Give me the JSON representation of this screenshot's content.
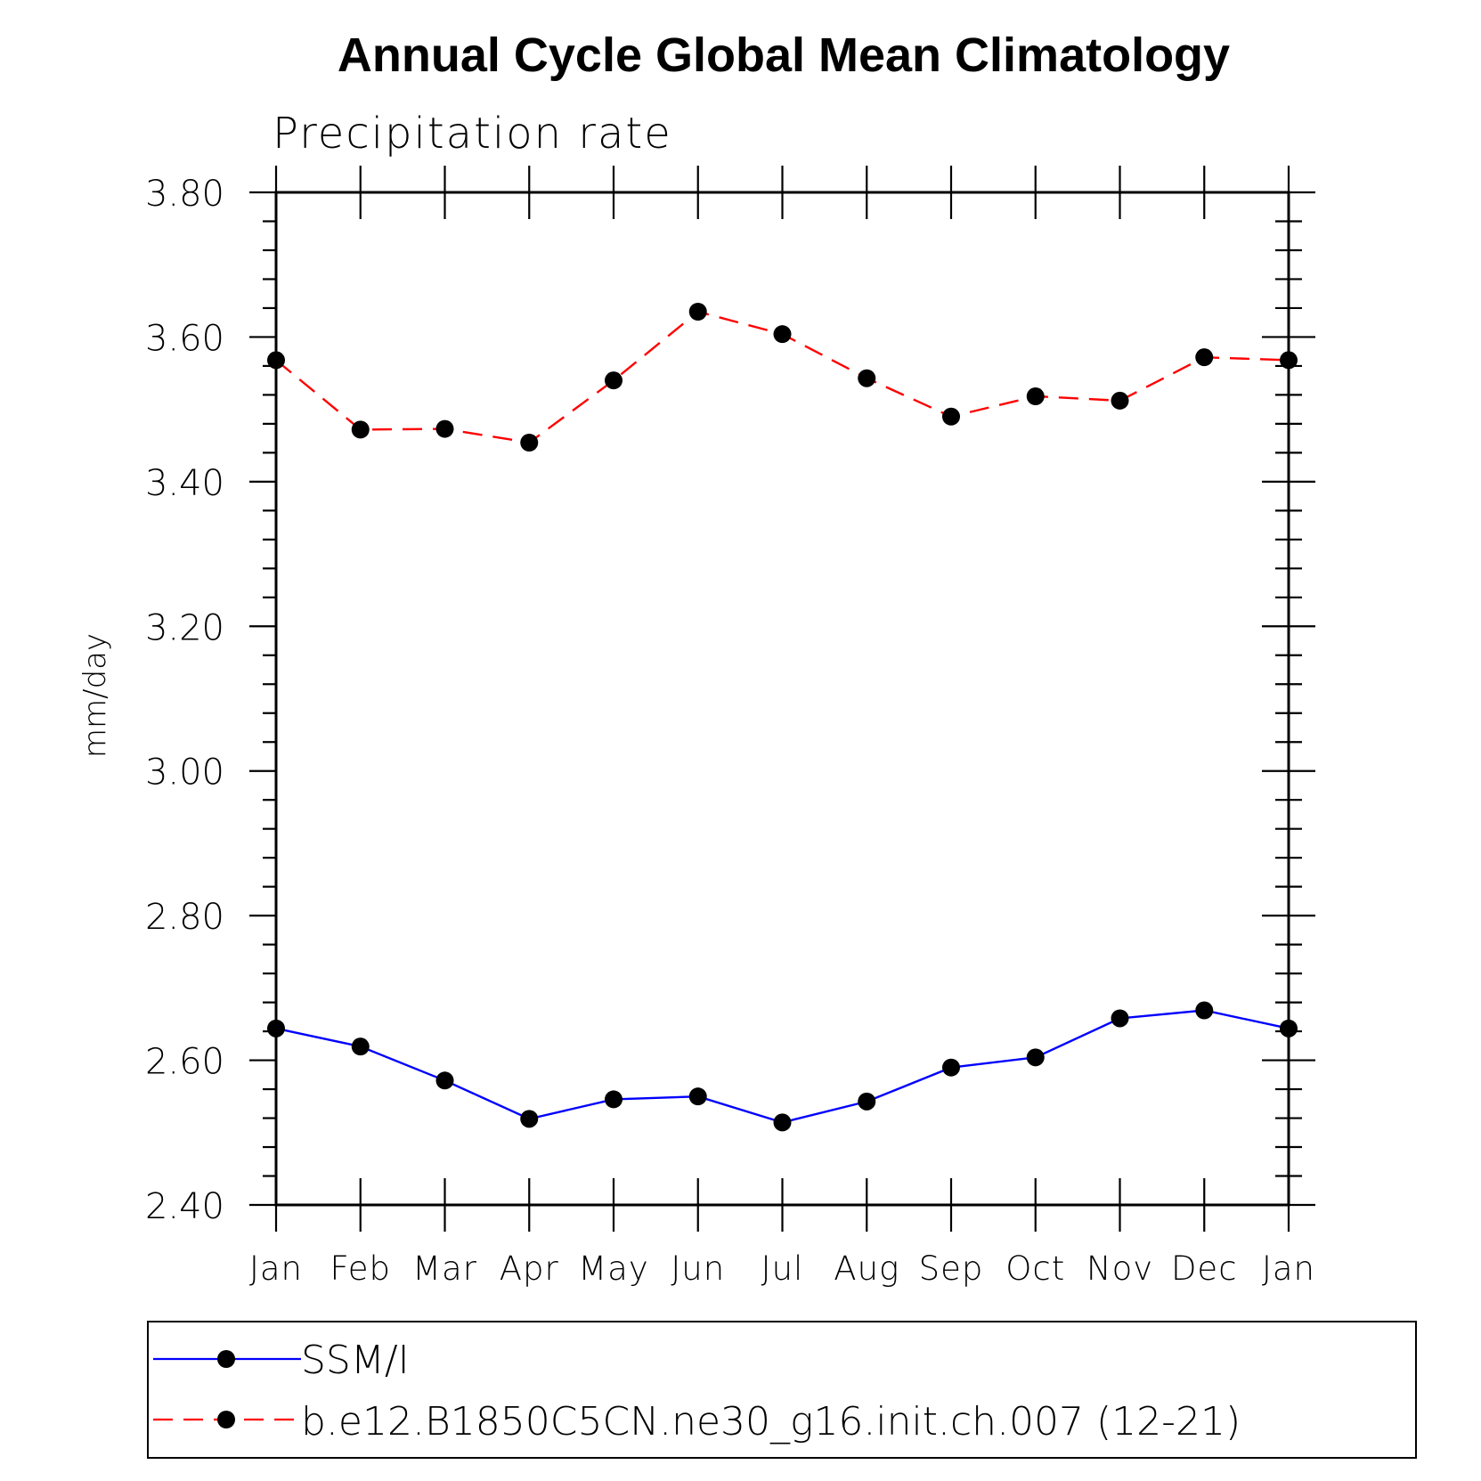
{
  "chart_data": {
    "type": "line",
    "title": "Annual Cycle Global Mean Climatology",
    "subtitle": "Precipitation rate",
    "xlabel": "",
    "ylabel": "mm/day",
    "categories": [
      "Jan",
      "Feb",
      "Mar",
      "Apr",
      "May",
      "Jun",
      "Jul",
      "Aug",
      "Sep",
      "Oct",
      "Nov",
      "Dec",
      "Jan"
    ],
    "ylim": [
      2.4,
      3.8
    ],
    "yticks": [
      "2.40",
      "2.60",
      "2.80",
      "3.00",
      "3.20",
      "3.40",
      "3.60",
      "3.80"
    ],
    "grid": false,
    "legend_position": "bottom",
    "series": [
      {
        "name": "SSM/I",
        "color": "#0000ff",
        "line_style": "solid",
        "marker": "filled-circle",
        "values": [
          2.644,
          2.619,
          2.572,
          2.519,
          2.546,
          2.55,
          2.514,
          2.543,
          2.59,
          2.604,
          2.658,
          2.669,
          2.644
        ]
      },
      {
        "name": "b.e12.B1850C5CN.ne30_g16.init.ch.007 (12-21)",
        "color": "#ff0000",
        "line_style": "dashed",
        "marker": "filled-circle",
        "values": [
          3.568,
          3.472,
          3.473,
          3.454,
          3.54,
          3.635,
          3.604,
          3.543,
          3.49,
          3.518,
          3.512,
          3.572,
          3.568
        ]
      }
    ]
  }
}
